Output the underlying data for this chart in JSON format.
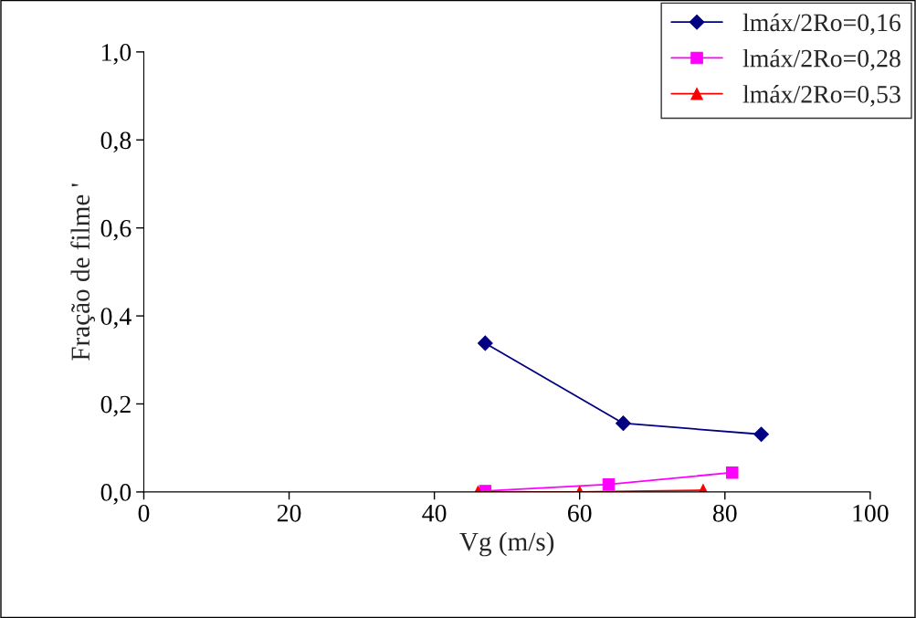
{
  "chart_data": {
    "type": "line",
    "xlabel": "Vg (m/s)",
    "ylabel": "Fração de filme '",
    "xlim": [
      0,
      100
    ],
    "xticks": [
      0,
      20,
      40,
      60,
      80,
      100
    ],
    "ylim": [
      0,
      1.0
    ],
    "yticks": [
      {
        "value": 0,
        "label": "0,0"
      },
      {
        "value": 0.2,
        "label": "0,2"
      },
      {
        "value": 0.4,
        "label": "0,4"
      },
      {
        "value": 0.6,
        "label": "0,6"
      },
      {
        "value": 0.8,
        "label": "0,8"
      },
      {
        "value": 1.0,
        "label": "1,0"
      }
    ],
    "grid": false,
    "legend": "top right",
    "series": [
      {
        "name": "lmáx/2Ro=0,16",
        "color": "#000080",
        "marker": "diamond",
        "x": [
          47,
          66,
          85
        ],
        "values": [
          0.338,
          0.156,
          0.131
        ]
      },
      {
        "name": "lmáx/2Ro=0,28",
        "color": "#ff00ff",
        "marker": "square",
        "x": [
          47,
          64,
          81
        ],
        "values": [
          0.002,
          0.017,
          0.044
        ]
      },
      {
        "name": "lmáx/2Ro=0,53",
        "color": "#ff0000",
        "marker": "triangle",
        "x": [
          46,
          60,
          77
        ],
        "values": [
          0.0,
          0.0,
          0.004
        ]
      }
    ]
  }
}
